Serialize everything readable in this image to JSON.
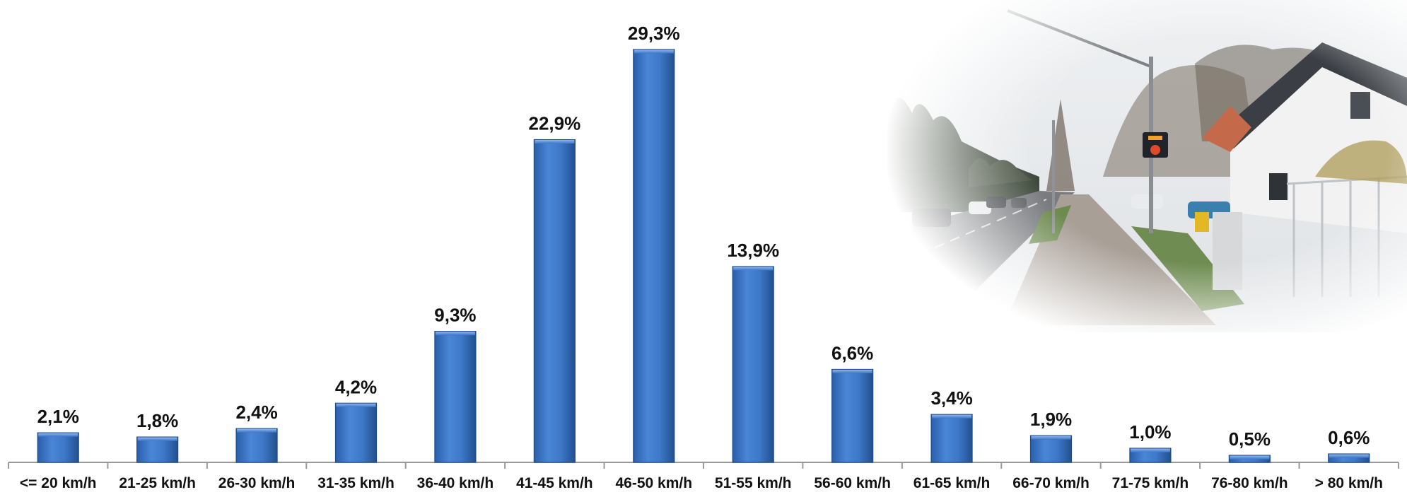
{
  "chart_data": {
    "type": "bar",
    "title": "",
    "xlabel": "",
    "ylabel": "",
    "categories": [
      "<= 20 km/h",
      "21-25 km/h",
      "26-30 km/h",
      "31-35 km/h",
      "36-40 km/h",
      "41-45 km/h",
      "46-50 km/h",
      "51-55 km/h",
      "56-60 km/h",
      "61-65 km/h",
      "66-70 km/h",
      "71-75 km/h",
      "76-80 km/h",
      "> 80 km/h"
    ],
    "values": [
      2.1,
      1.8,
      2.4,
      4.2,
      9.3,
      22.9,
      29.3,
      13.9,
      6.6,
      3.4,
      1.9,
      1.0,
      0.5,
      0.6
    ],
    "data_labels": [
      "2,1%",
      "1,8%",
      "2,4%",
      "4,2%",
      "9,3%",
      "22,9%",
      "29,3%",
      "13,9%",
      "6,6%",
      "3,4%",
      "1,9%",
      "1,0%",
      "0,5%",
      "0,6%"
    ],
    "ylim": [
      0,
      30
    ],
    "grid": false,
    "legend": "none",
    "bar_color": "#3d76c9"
  },
  "photo": {
    "icon": "street-photo-with-speed-display"
  }
}
